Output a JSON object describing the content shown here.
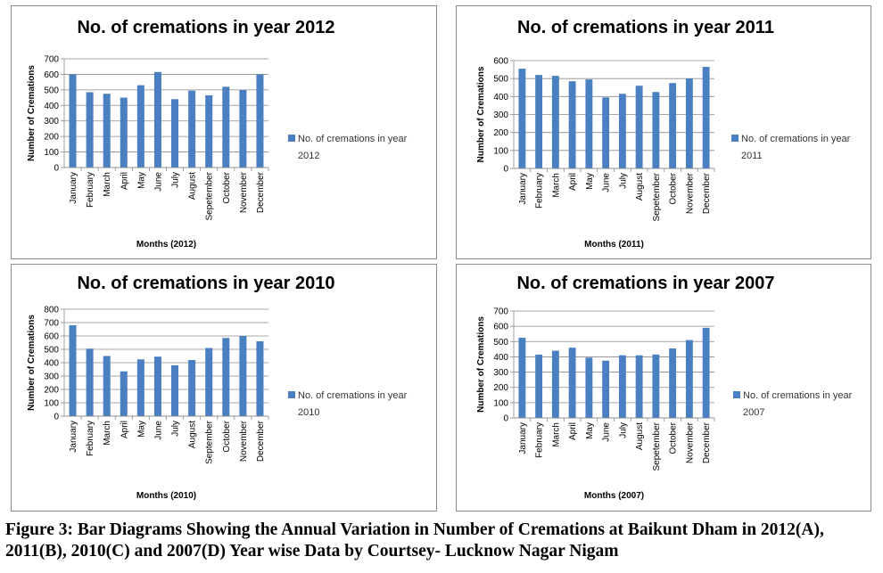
{
  "chart_data": [
    {
      "type": "bar",
      "title": "No. of cremations in year 2012",
      "xlabel": "Months (2012)",
      "ylabel": "Number of Cremations",
      "ylim": [
        0,
        700
      ],
      "yticks": [
        0,
        100,
        200,
        300,
        400,
        500,
        600,
        700
      ],
      "grid": true,
      "legend_position": "right",
      "color": "#4a7fc1",
      "categories": [
        "January",
        "February",
        "March",
        "April",
        "May",
        "June",
        "July",
        "August",
        "Sepetember",
        "October",
        "November",
        "December"
      ],
      "series": [
        {
          "name": [
            "No. of cremations in year",
            "2012"
          ],
          "values": [
            600,
            485,
            475,
            450,
            530,
            615,
            440,
            495,
            465,
            520,
            500,
            600
          ]
        }
      ]
    },
    {
      "type": "bar",
      "title": "No. of cremations in year 2011",
      "xlabel": "Months (2011)",
      "ylabel": "Number of Cremations",
      "ylim": [
        0,
        600
      ],
      "yticks": [
        0,
        100,
        200,
        300,
        400,
        500,
        600
      ],
      "grid": true,
      "legend_position": "right",
      "color": "#4a7fc1",
      "categories": [
        "January",
        "February",
        "March",
        "April",
        "May",
        "June",
        "July",
        "August",
        "Sepetember",
        "October",
        "November",
        "December"
      ],
      "series": [
        {
          "name": [
            "No. of cremations in year",
            "2011"
          ],
          "values": [
            555,
            520,
            515,
            485,
            495,
            395,
            415,
            460,
            425,
            475,
            500,
            565
          ]
        }
      ]
    },
    {
      "type": "bar",
      "title": "No. of cremations in year 2010",
      "xlabel": "Months (2010)",
      "ylabel": "Number of Cremations",
      "ylim": [
        0,
        800
      ],
      "yticks": [
        0,
        100,
        200,
        300,
        400,
        500,
        600,
        700,
        800
      ],
      "grid": true,
      "legend_position": "right",
      "color": "#4a7fc1",
      "categories": [
        "January",
        "February",
        "March",
        "April",
        "May",
        "June",
        "July",
        "August",
        "September",
        "October",
        "November",
        "December"
      ],
      "series": [
        {
          "name": [
            "No. of cremations in year",
            "2010"
          ],
          "values": [
            680,
            505,
            450,
            335,
            425,
            445,
            380,
            420,
            510,
            585,
            600,
            560
          ]
        }
      ]
    },
    {
      "type": "bar",
      "title": "No. of cremations in year 2007",
      "xlabel": "Months (2007)",
      "ylabel": "Number of Cremations",
      "ylim": [
        0,
        700
      ],
      "yticks": [
        0,
        100,
        200,
        300,
        400,
        500,
        600,
        700
      ],
      "grid": true,
      "legend_position": "right",
      "color": "#4a7fc1",
      "categories": [
        "January",
        "February",
        "March",
        "April",
        "May",
        "June",
        "July",
        "August",
        "Sepetember",
        "October",
        "November",
        "December"
      ],
      "series": [
        {
          "name": [
            "No. of cremations in year",
            "2007"
          ],
          "values": [
            525,
            415,
            440,
            460,
            395,
            375,
            410,
            410,
            415,
            455,
            510,
            590
          ]
        }
      ]
    }
  ],
  "caption": "Figure 3: Bar Diagrams Showing the Annual Variation in Number of Cremations at Baikunt Dham in 2012(A), 2011(B), 2010(C) and 2007(D) Year wise Data by Courtsey- Lucknow Nagar Nigam"
}
